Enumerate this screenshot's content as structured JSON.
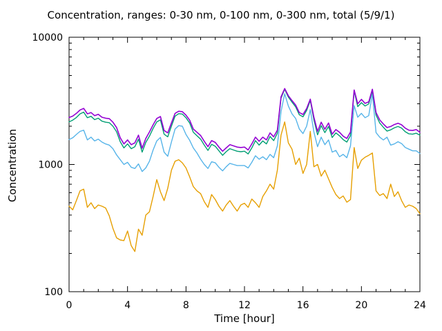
{
  "page": {
    "background": "#ffffff",
    "text_color": "#000000"
  },
  "chart_data": {
    "type": "line",
    "title": "Concentration, ranges: 0-30 nm, 0-100 nm, 0-300 nm, total (5/9/1)",
    "xlabel": "Time [hour]",
    "ylabel": "Concentration",
    "xlim": [
      0,
      24
    ],
    "ylim": [
      100,
      10000
    ],
    "y_scale": "log10",
    "grid": false,
    "legend_position": "none",
    "x_major_ticks": [
      0,
      4,
      8,
      12,
      16,
      20,
      24
    ],
    "x_minor_tick_step": 1,
    "y_major_ticks": [
      100,
      1000,
      10000
    ],
    "y_minor_ticks": "2-9 per decade",
    "x_start": 0,
    "x_step": 0.25,
    "axis_color": "#000000",
    "series": [
      {
        "name": "0-30 nm",
        "key": "0-30-nm",
        "color": "#e69f00",
        "width": 1.4,
        "values": [
          470,
          440,
          520,
          620,
          640,
          460,
          500,
          450,
          480,
          470,
          455,
          395,
          315,
          265,
          255,
          252,
          300,
          230,
          207,
          310,
          278,
          400,
          425,
          560,
          760,
          610,
          520,
          650,
          900,
          1060,
          1090,
          1030,
          940,
          800,
          670,
          620,
          590,
          510,
          460,
          580,
          530,
          470,
          430,
          480,
          520,
          470,
          430,
          480,
          495,
          460,
          535,
          500,
          460,
          560,
          620,
          700,
          640,
          900,
          1700,
          2160,
          1480,
          1320,
          1000,
          1120,
          850,
          1000,
          1820,
          960,
          1000,
          810,
          900,
          770,
          660,
          580,
          540,
          565,
          505,
          530,
          1360,
          930,
          1080,
          1140,
          1180,
          1230,
          620,
          570,
          590,
          540,
          700,
          560,
          610,
          520,
          460,
          480,
          470,
          450,
          410
        ]
      },
      {
        "name": "0-100 nm",
        "key": "0-100-nm",
        "color": "#56b4e9",
        "width": 1.4,
        "values": [
          1570,
          1620,
          1720,
          1820,
          1860,
          1560,
          1640,
          1530,
          1580,
          1500,
          1450,
          1420,
          1330,
          1190,
          1090,
          1000,
          1040,
          950,
          930,
          1010,
          880,
          940,
          1060,
          1300,
          1530,
          1630,
          1250,
          1160,
          1500,
          1900,
          2020,
          2000,
          1720,
          1550,
          1350,
          1230,
          1100,
          1000,
          930,
          1050,
          1030,
          950,
          890,
          960,
          1020,
          1000,
          980,
          980,
          980,
          940,
          1040,
          1170,
          1100,
          1150,
          1090,
          1200,
          1130,
          1400,
          2600,
          3600,
          2880,
          2500,
          2300,
          1900,
          1750,
          2000,
          2700,
          1800,
          1380,
          1640,
          1430,
          1560,
          1250,
          1290,
          1150,
          1200,
          1130,
          1400,
          2900,
          2350,
          2520,
          2330,
          2420,
          3600,
          1780,
          1640,
          1560,
          1640,
          1420,
          1450,
          1510,
          1460,
          1360,
          1320,
          1280,
          1280,
          1220
        ]
      },
      {
        "name": "0-300 nm",
        "key": "0-300-nm",
        "color": "#009e73",
        "width": 1.4,
        "values": [
          2160,
          2230,
          2340,
          2500,
          2580,
          2330,
          2390,
          2250,
          2310,
          2190,
          2150,
          2130,
          2000,
          1810,
          1510,
          1350,
          1450,
          1330,
          1380,
          1580,
          1250,
          1490,
          1670,
          1920,
          2160,
          2240,
          1730,
          1650,
          2000,
          2400,
          2510,
          2490,
          2330,
          2120,
          1790,
          1680,
          1580,
          1420,
          1290,
          1440,
          1390,
          1280,
          1180,
          1260,
          1330,
          1300,
          1270,
          1260,
          1270,
          1210,
          1350,
          1540,
          1420,
          1530,
          1450,
          1660,
          1540,
          1760,
          3320,
          3900,
          3390,
          3090,
          2840,
          2460,
          2370,
          2660,
          3190,
          2250,
          1710,
          2020,
          1780,
          1990,
          1630,
          1770,
          1680,
          1570,
          1500,
          1690,
          3780,
          2850,
          3060,
          2880,
          2990,
          3820,
          2440,
          2120,
          1960,
          1830,
          1870,
          1940,
          1990,
          1930,
          1810,
          1740,
          1730,
          1760,
          1700
        ]
      },
      {
        "name": "total",
        "key": "total",
        "color": "#9400d3",
        "width": 1.6,
        "values": [
          2340,
          2400,
          2520,
          2680,
          2760,
          2500,
          2560,
          2420,
          2480,
          2350,
          2310,
          2290,
          2150,
          1950,
          1620,
          1450,
          1560,
          1430,
          1480,
          1700,
          1340,
          1600,
          1800,
          2050,
          2300,
          2380,
          1850,
          1770,
          2120,
          2520,
          2620,
          2600,
          2440,
          2230,
          1900,
          1790,
          1690,
          1520,
          1380,
          1540,
          1490,
          1370,
          1270,
          1350,
          1430,
          1400,
          1370,
          1360,
          1370,
          1300,
          1450,
          1640,
          1520,
          1640,
          1560,
          1770,
          1650,
          1860,
          3400,
          3950,
          3470,
          3180,
          2930,
          2560,
          2470,
          2750,
          3260,
          2350,
          1820,
          2150,
          1890,
          2120,
          1730,
          1880,
          1790,
          1670,
          1600,
          1800,
          3850,
          3000,
          3250,
          3020,
          3100,
          3900,
          2560,
          2240,
          2080,
          1950,
          1990,
          2060,
          2110,
          2050,
          1930,
          1860,
          1850,
          1880,
          1790
        ]
      }
    ]
  }
}
